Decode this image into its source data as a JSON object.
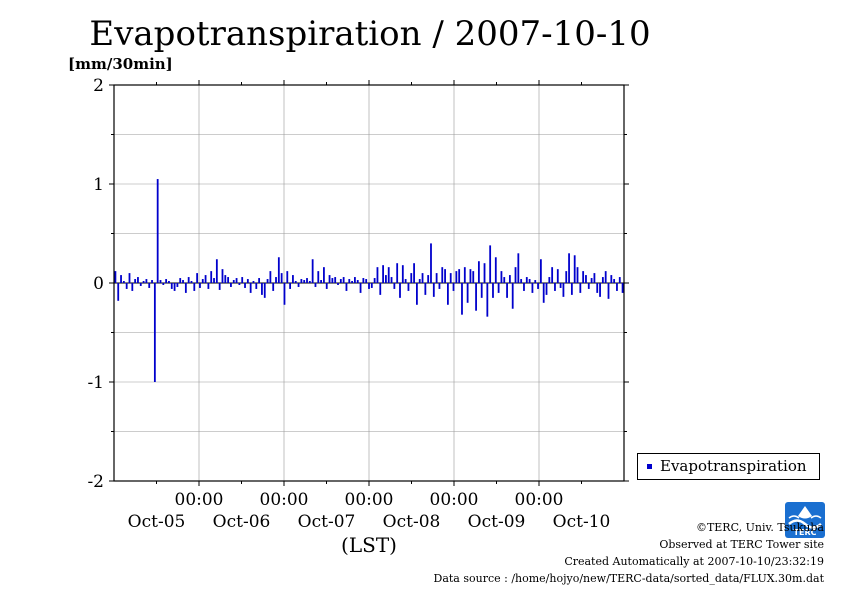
{
  "chart_data": {
    "type": "bar",
    "title": "Evapotranspiration / 2007-10-10",
    "ylabel": "[mm/30min]",
    "xlabel": "(LST)",
    "ylim": [
      -2,
      2
    ],
    "yticks": [
      "2",
      "1",
      "0",
      "-1",
      "-2"
    ],
    "x_tick_time": "00:00",
    "x_day_labels": [
      "Oct-05",
      "Oct-06",
      "Oct-07",
      "Oct-08",
      "Oct-09",
      "Oct-10"
    ],
    "grid": true,
    "legend_position": "bottom-right",
    "series": [
      {
        "name": "Evapotranspiration",
        "color": "#0000cc",
        "values": [
          0.12,
          -0.18,
          0.08,
          0.02,
          -0.06,
          0.1,
          -0.08,
          0.04,
          0.06,
          -0.03,
          0.02,
          0.04,
          -0.05,
          0.03,
          -1.0,
          1.05,
          0.03,
          -0.02,
          0.04,
          0.02,
          -0.06,
          -0.08,
          -0.04,
          0.05,
          0.03,
          -0.1,
          0.06,
          0.02,
          -0.08,
          0.1,
          -0.05,
          0.04,
          0.08,
          -0.06,
          0.12,
          0.05,
          0.24,
          -0.07,
          0.14,
          0.08,
          0.06,
          -0.04,
          0.03,
          0.05,
          -0.02,
          0.06,
          -0.05,
          0.04,
          -0.1,
          0.02,
          -0.06,
          0.05,
          -0.12,
          -0.15,
          0.04,
          0.12,
          -0.08,
          0.06,
          0.26,
          0.1,
          -0.22,
          0.12,
          -0.06,
          0.08,
          0.02,
          -0.04,
          0.04,
          0.03,
          0.05,
          0.02,
          0.24,
          -0.04,
          0.12,
          0.03,
          0.16,
          -0.06,
          0.08,
          0.05,
          0.06,
          -0.02,
          0.04,
          0.06,
          -0.08,
          0.04,
          0.02,
          0.06,
          0.03,
          -0.1,
          0.05,
          0.04,
          -0.06,
          -0.05,
          0.05,
          0.16,
          -0.12,
          0.18,
          0.08,
          0.16,
          0.06,
          -0.06,
          0.2,
          -0.15,
          0.18,
          0.04,
          -0.08,
          0.1,
          0.2,
          -0.22,
          0.04,
          0.1,
          -0.12,
          0.08,
          0.4,
          -0.14,
          0.1,
          -0.06,
          0.16,
          0.14,
          -0.22,
          0.1,
          -0.08,
          0.12,
          0.14,
          -0.32,
          0.16,
          -0.2,
          0.14,
          0.12,
          -0.28,
          0.22,
          -0.15,
          0.2,
          -0.34,
          0.38,
          -0.15,
          0.26,
          -0.1,
          0.12,
          0.06,
          -0.15,
          0.08,
          -0.26,
          0.16,
          0.3,
          0.04,
          -0.08,
          0.06,
          0.04,
          -0.1,
          0.03,
          -0.06,
          0.24,
          -0.2,
          -0.12,
          0.06,
          0.16,
          -0.08,
          0.14,
          -0.05,
          -0.14,
          0.12,
          0.3,
          -0.12,
          0.28,
          0.16,
          -0.1,
          0.12,
          0.08,
          -0.06,
          0.05,
          0.1,
          -0.1,
          -0.14,
          0.06,
          0.12,
          -0.16,
          0.08,
          0.04,
          -0.08,
          0.06,
          -0.1
        ]
      }
    ]
  },
  "footer": {
    "credit": "©TERC, Univ. Tsukuba",
    "observed": "Observed at TERC Tower site",
    "created": "Created Automatically at 2007-10-10/23:32:19",
    "source": "Data source : /home/hojyo/new/TERC-data/sorted_data/FLUX.30m.dat"
  },
  "logo": {
    "text": "TERC",
    "color": "#1a6fd0"
  }
}
